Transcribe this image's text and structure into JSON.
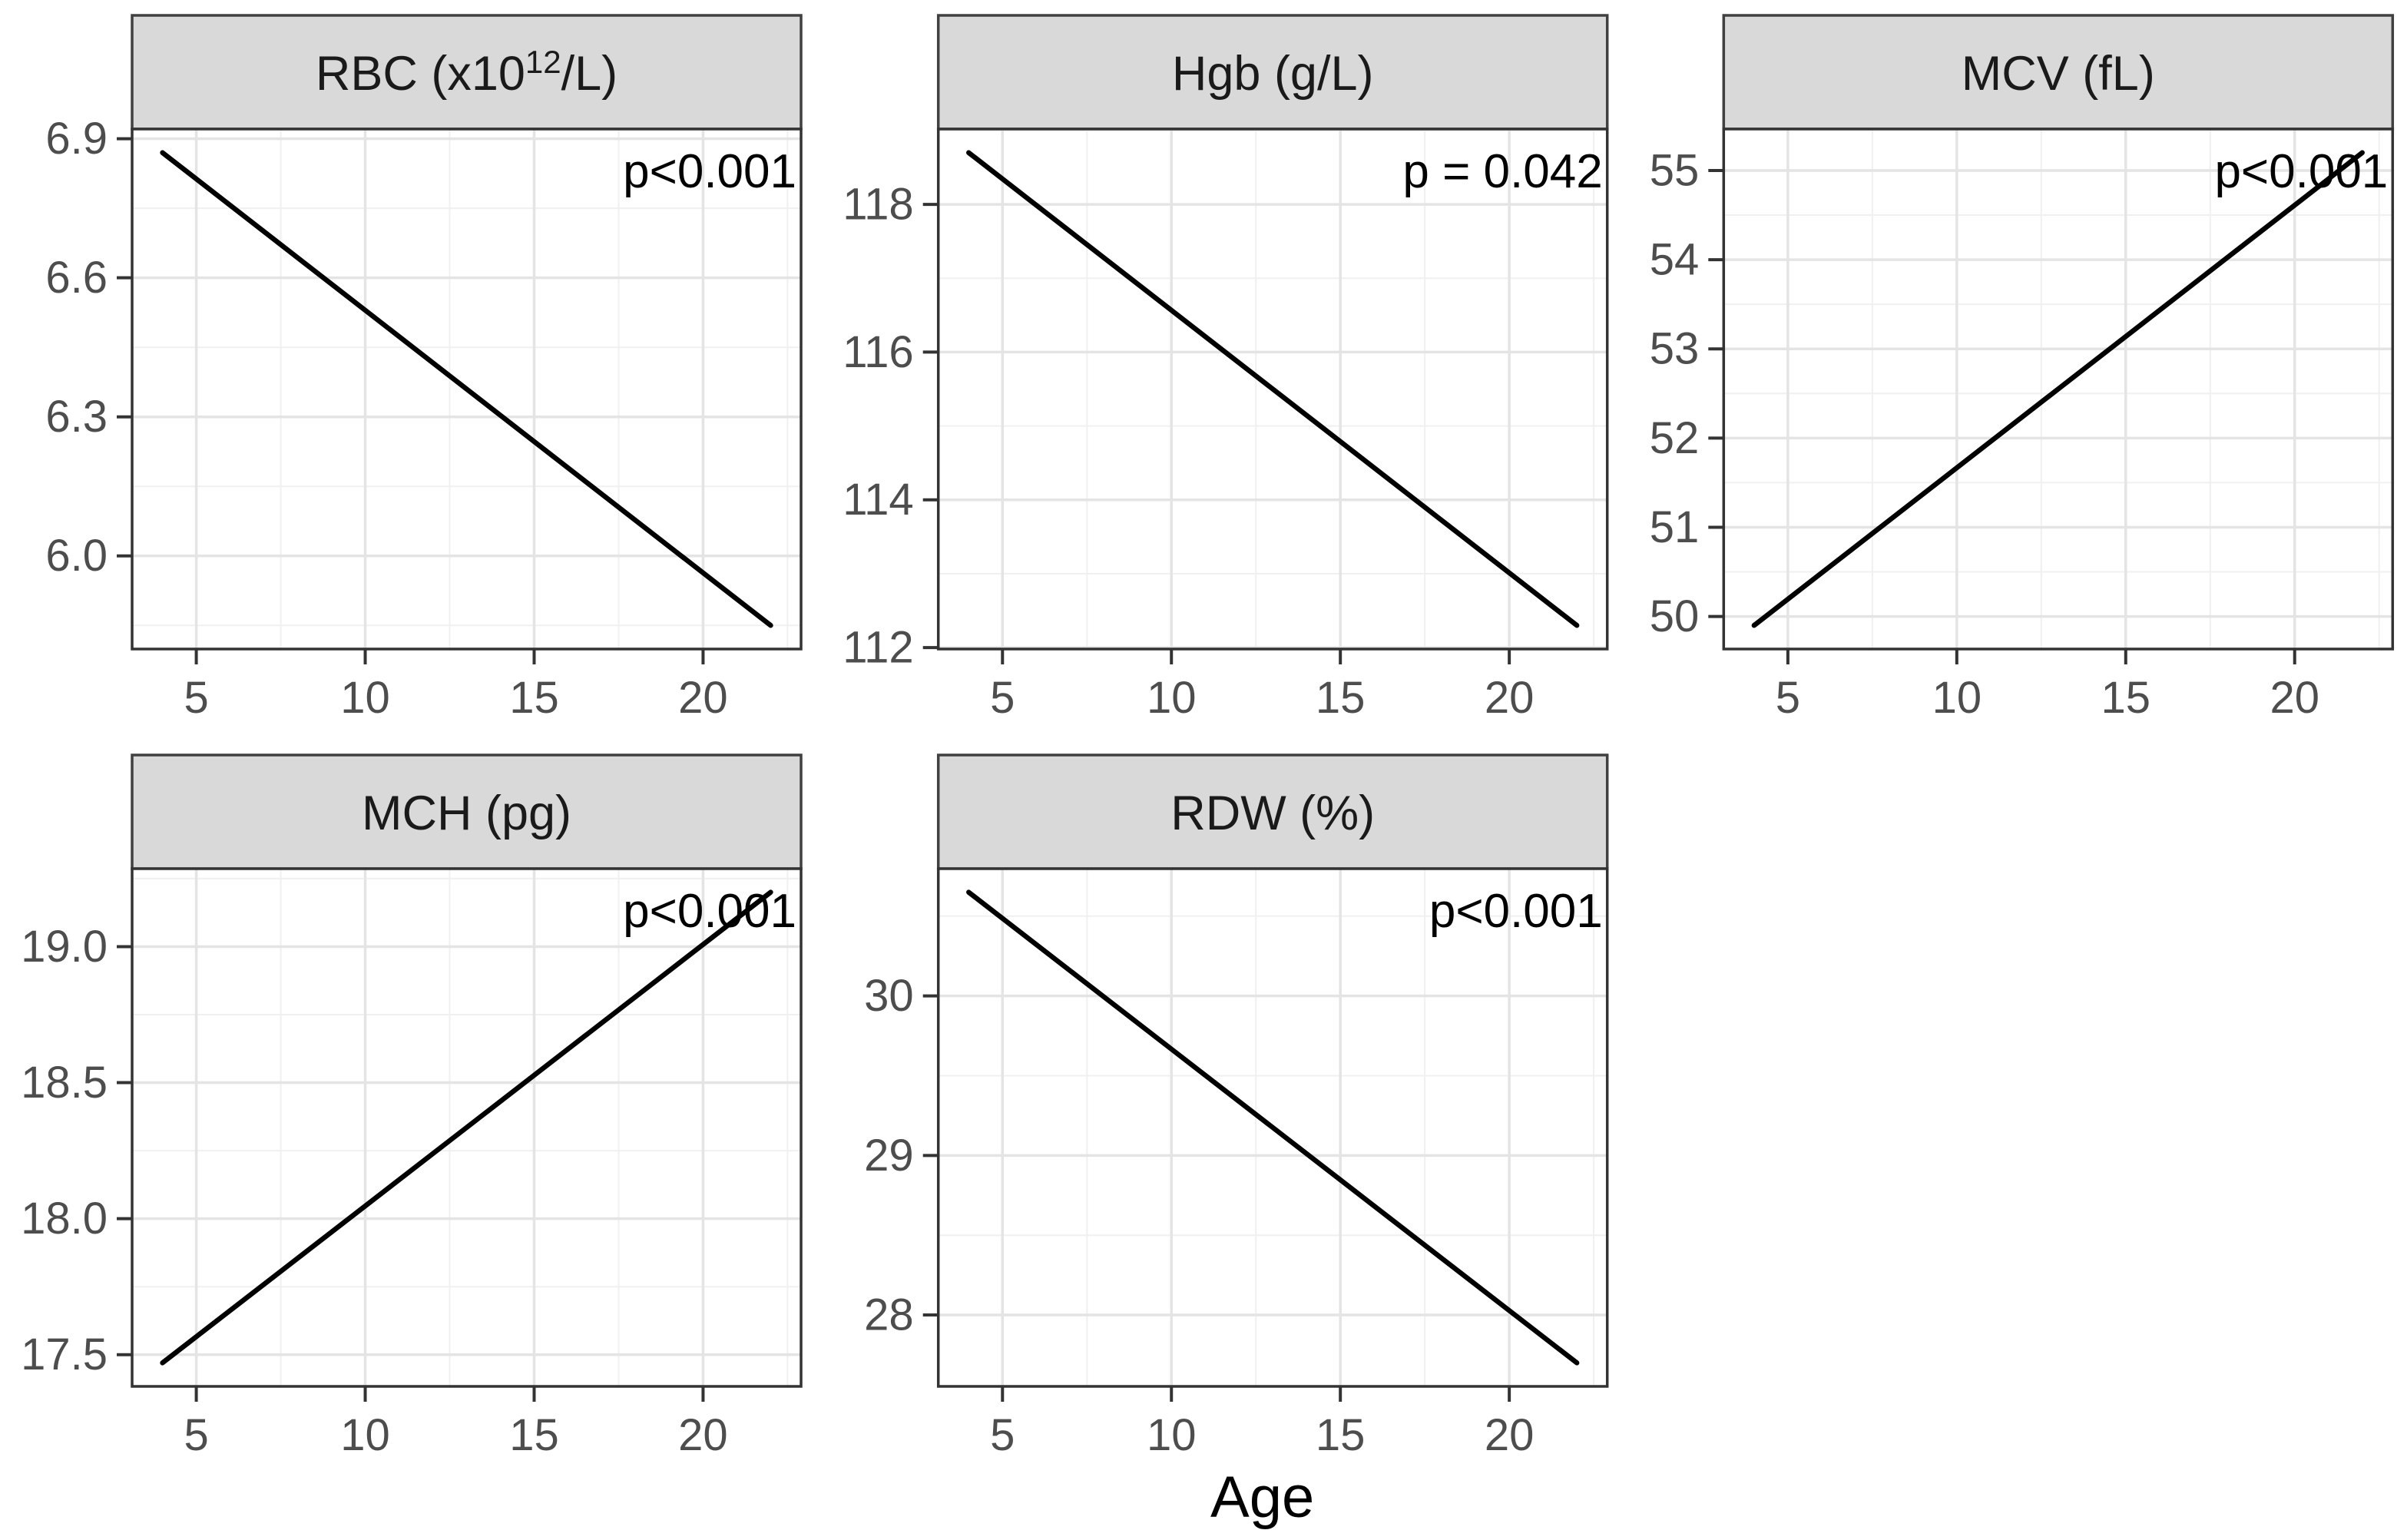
{
  "chart_data": {
    "type": "line",
    "title": "",
    "xlabel": "Age",
    "layout": "facet_wrap, 3 columns x 2 rows, free y scales",
    "grid": "on",
    "x_axis": {
      "range": [
        3.1,
        22.9
      ],
      "ticks": [
        5,
        10,
        15,
        20
      ],
      "tick_labels": [
        "5",
        "10",
        "15",
        "20"
      ],
      "minor_ticks": [
        7.5,
        12.5,
        17.5,
        22.5
      ]
    },
    "colors": {
      "line": "#000000",
      "strip_bg": "#d9d9d9",
      "strip_border": "#404040",
      "panel_border": "#333333",
      "panel_bg": "#ffffff",
      "grid_major": "#e4e4e4",
      "grid_minor": "#f0f0f0",
      "tick_mark": "#333333",
      "tick_text": "#4d4d4d",
      "annotation_text": "#000000",
      "strip_text": "#1a1a1a",
      "axis_title_text": "#000000"
    },
    "panels": [
      {
        "facet_title": "RBC (x10¹²/L)",
        "title_parts": {
          "pre": "RBC (x10",
          "sup": "12",
          "post": "/L)"
        },
        "annotation": "p<0.001",
        "grid_pos": {
          "row": 0,
          "col": 0
        },
        "y_axis": {
          "range": [
            5.799,
            6.921
          ],
          "ticks": [
            6.0,
            6.3,
            6.6,
            6.9
          ],
          "tick_labels": [
            "6.0",
            "6.3",
            "6.6",
            "6.9"
          ],
          "minor_ticks": [
            5.85,
            6.15,
            6.45,
            6.75
          ]
        },
        "series": {
          "x": [
            4,
            22
          ],
          "y": [
            6.87,
            5.85
          ]
        }
      },
      {
        "facet_title": "Hgb (g/L)",
        "title_parts": {
          "pre": "Hgb (g/L)",
          "sup": "",
          "post": ""
        },
        "annotation": "p = 0.042",
        "grid_pos": {
          "row": 0,
          "col": 1
        },
        "y_axis": {
          "range": [
            111.98,
            119.02
          ],
          "ticks": [
            112,
            114,
            116,
            118
          ],
          "tick_labels": [
            "112",
            "114",
            "116",
            "118"
          ],
          "minor_ticks": [
            113,
            115,
            117,
            119
          ]
        },
        "series": {
          "x": [
            4,
            22
          ],
          "y": [
            118.7,
            112.3
          ]
        }
      },
      {
        "facet_title": "MCV (fL)",
        "title_parts": {
          "pre": "MCV (fL)",
          "sup": "",
          "post": ""
        },
        "annotation": "p<0.001",
        "grid_pos": {
          "row": 0,
          "col": 2
        },
        "y_axis": {
          "range": [
            49.635,
            55.465
          ],
          "ticks": [
            50,
            51,
            52,
            53,
            54,
            55
          ],
          "tick_labels": [
            "50",
            "51",
            "52",
            "53",
            "54",
            "55"
          ],
          "minor_ticks": [
            50.5,
            51.5,
            52.5,
            53.5,
            54.5
          ]
        },
        "series": {
          "x": [
            4,
            22
          ],
          "y": [
            49.9,
            55.2
          ]
        }
      },
      {
        "facet_title": "MCH (pg)",
        "title_parts": {
          "pre": "MCH (pg)",
          "sup": "",
          "post": ""
        },
        "annotation": "p<0.001",
        "grid_pos": {
          "row": 1,
          "col": 0
        },
        "y_axis": {
          "range": [
            17.3835,
            19.2865
          ],
          "ticks": [
            17.5,
            18.0,
            18.5,
            19.0
          ],
          "tick_labels": [
            "17.5",
            "18.0",
            "18.5",
            "19.0"
          ],
          "minor_ticks": [
            17.75,
            18.25,
            18.75,
            19.25
          ]
        },
        "series": {
          "x": [
            4,
            22
          ],
          "y": [
            17.47,
            19.2
          ]
        }
      },
      {
        "facet_title": "RDW (%)",
        "title_parts": {
          "pre": "RDW (%)",
          "sup": "",
          "post": ""
        },
        "annotation": "p<0.001",
        "grid_pos": {
          "row": 1,
          "col": 1
        },
        "y_axis": {
          "range": [
            27.5525,
            30.7975
          ],
          "ticks": [
            28,
            29,
            30
          ],
          "tick_labels": [
            "28",
            "29",
            "30"
          ],
          "minor_ticks": [
            28.5,
            29.5,
            30.5
          ]
        },
        "series": {
          "x": [
            4,
            22
          ],
          "y": [
            30.65,
            27.7
          ]
        }
      }
    ]
  }
}
